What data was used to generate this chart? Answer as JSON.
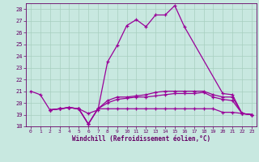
{
  "xlabel": "Windchill (Refroidissement éolien,°C)",
  "background_color": "#c8e8e0",
  "grid_color": "#a8cfc0",
  "line_color": "#990099",
  "xlim": [
    -0.5,
    23.5
  ],
  "ylim": [
    18,
    28.5
  ],
  "yticks": [
    18,
    19,
    20,
    21,
    22,
    23,
    24,
    25,
    26,
    27,
    28
  ],
  "xticks": [
    0,
    1,
    2,
    3,
    4,
    5,
    6,
    7,
    8,
    9,
    10,
    11,
    12,
    13,
    14,
    15,
    16,
    17,
    18,
    19,
    20,
    21,
    22,
    23
  ],
  "series": [
    {
      "x": [
        0,
        1,
        2,
        3,
        4,
        5,
        6,
        7,
        8,
        9,
        10,
        11,
        12,
        13,
        14,
        15,
        16,
        20,
        21,
        22,
        23
      ],
      "y": [
        21.0,
        20.7,
        19.4,
        19.5,
        19.6,
        19.5,
        19.1,
        19.4,
        23.5,
        24.9,
        26.6,
        27.1,
        26.5,
        27.5,
        27.5,
        28.3,
        26.5,
        20.8,
        20.7,
        19.1,
        19.0
      ]
    },
    {
      "x": [
        2,
        3,
        4,
        5,
        6,
        7,
        8,
        9,
        10,
        11,
        12,
        13,
        14,
        15,
        16,
        17,
        18,
        19,
        20,
        21,
        22,
        23
      ],
      "y": [
        19.4,
        19.5,
        19.6,
        19.5,
        18.2,
        19.5,
        20.2,
        20.5,
        20.5,
        20.6,
        20.7,
        20.9,
        21.0,
        21.0,
        21.0,
        21.0,
        21.0,
        20.7,
        20.5,
        20.5,
        19.1,
        19.0
      ]
    },
    {
      "x": [
        2,
        3,
        4,
        5,
        6,
        7,
        8,
        9,
        10,
        11,
        12,
        13,
        14,
        15,
        16,
        17,
        18,
        19,
        20,
        21,
        22,
        23
      ],
      "y": [
        19.4,
        19.5,
        19.6,
        19.5,
        18.2,
        19.5,
        20.0,
        20.3,
        20.4,
        20.5,
        20.5,
        20.6,
        20.7,
        20.8,
        20.8,
        20.8,
        20.9,
        20.5,
        20.3,
        20.2,
        19.1,
        19.0
      ]
    },
    {
      "x": [
        2,
        3,
        4,
        5,
        6,
        7,
        8,
        9,
        10,
        11,
        12,
        13,
        14,
        15,
        16,
        17,
        18,
        19,
        20,
        21,
        22,
        23
      ],
      "y": [
        19.4,
        19.5,
        19.6,
        19.5,
        18.2,
        19.5,
        19.5,
        19.5,
        19.5,
        19.5,
        19.5,
        19.5,
        19.5,
        19.5,
        19.5,
        19.5,
        19.5,
        19.5,
        19.2,
        19.2,
        19.1,
        19.0
      ]
    }
  ]
}
